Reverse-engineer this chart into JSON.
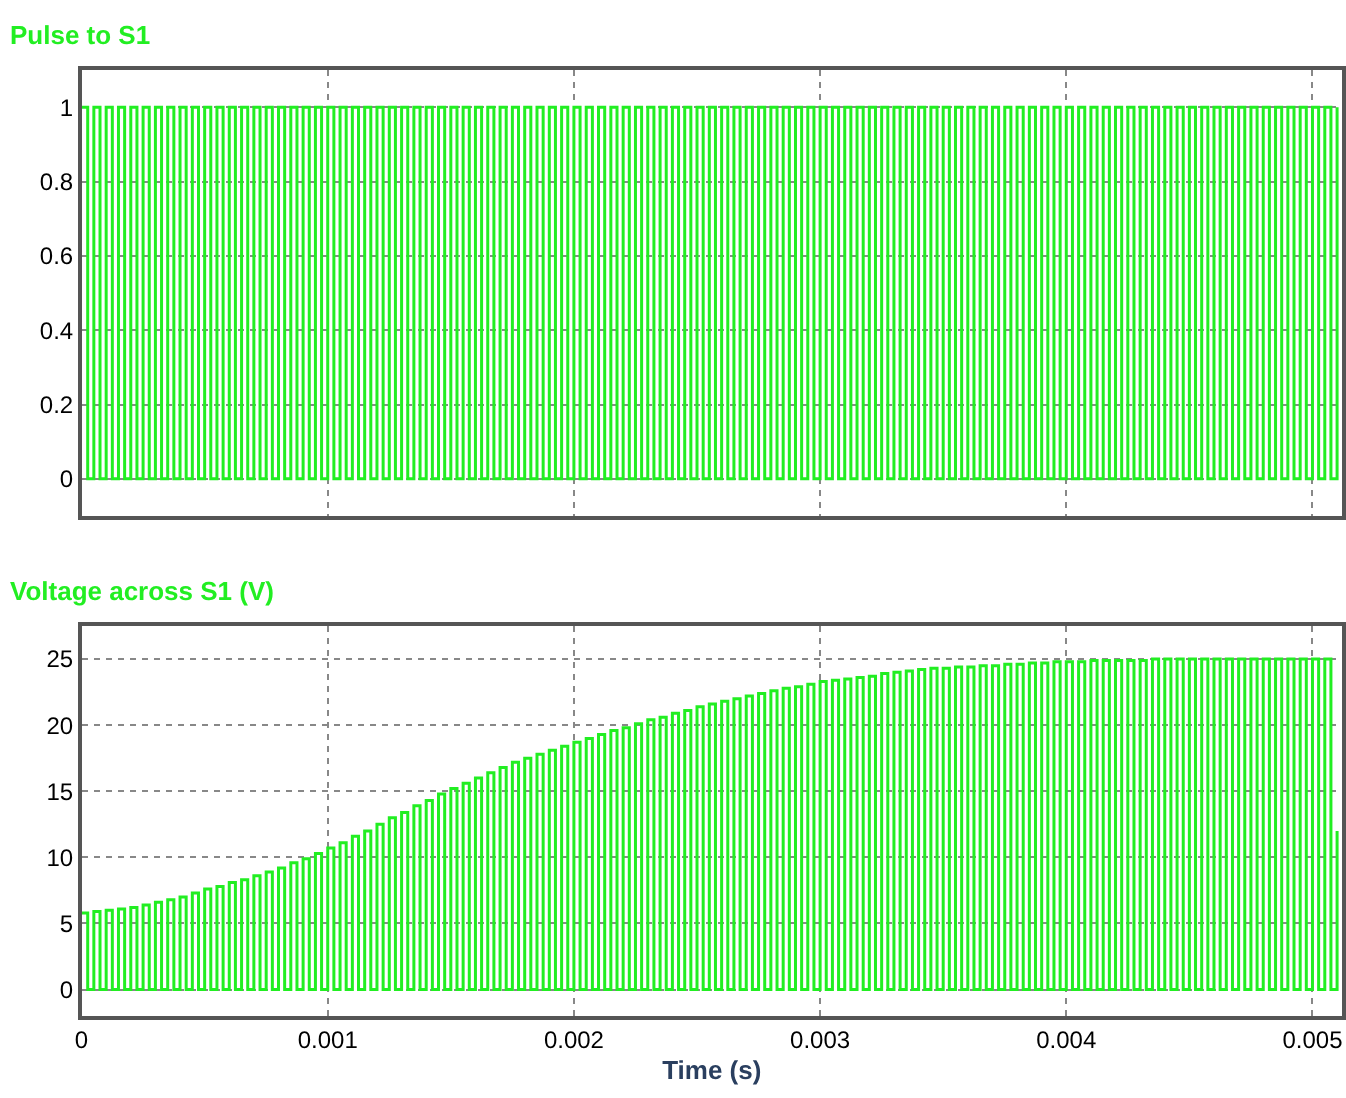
{
  "chart_data": [
    {
      "type": "step",
      "title": "Pulse to S1",
      "xlim": [
        0,
        0.00512
      ],
      "ylim": [
        -0.1,
        1.1
      ],
      "xticks": [
        0,
        0.001,
        0.002,
        0.003,
        0.004,
        0.005
      ],
      "yticks": [
        0,
        0.2,
        0.4,
        0.6,
        0.8,
        1
      ],
      "grid": true,
      "tick_labels": "y",
      "x": [
        0.0,
        2.5e-05,
        5e-05,
        7.5e-05,
        0.0001,
        0.000125,
        0.00015,
        0.000175,
        0.0002,
        0.000225,
        0.00025,
        0.000275,
        0.0003,
        0.000325,
        0.00035,
        0.000375,
        0.0004,
        0.000425,
        0.00045,
        0.000475,
        0.0005,
        0.000525,
        0.00055,
        0.000575,
        0.0006,
        0.000625,
        0.00065,
        0.000675,
        0.0007,
        0.000725,
        0.00075,
        0.000775,
        0.0008,
        0.000825,
        0.00085,
        0.000875,
        0.0009,
        0.000925,
        0.00095,
        0.000975,
        0.001,
        0.001025,
        0.00105,
        0.001075,
        0.0011,
        0.001125,
        0.00115,
        0.001175,
        0.0012,
        0.001225,
        0.00125,
        0.001275,
        0.0013,
        0.001325,
        0.00135,
        0.001375,
        0.0014,
        0.001425,
        0.00145,
        0.001475,
        0.0015,
        0.001525,
        0.00155,
        0.001575,
        0.0016,
        0.001625,
        0.00165,
        0.001675,
        0.0017,
        0.001725,
        0.00175,
        0.001775,
        0.0018,
        0.001825,
        0.00185,
        0.001875,
        0.0019,
        0.001925,
        0.00195,
        0.001975,
        0.002,
        0.002025,
        0.00205,
        0.002075,
        0.0021,
        0.002125,
        0.00215,
        0.002175,
        0.0022,
        0.002225,
        0.00225,
        0.002275,
        0.0023,
        0.002325,
        0.00235,
        0.002375,
        0.0024,
        0.002425,
        0.00245,
        0.002475,
        0.0025,
        0.002525,
        0.00255,
        0.002575,
        0.0026,
        0.002625,
        0.00265,
        0.002675,
        0.0027,
        0.002725,
        0.00275,
        0.002775,
        0.0028,
        0.002825,
        0.00285,
        0.002875,
        0.0029,
        0.002925,
        0.00295,
        0.002975,
        0.003,
        0.003025,
        0.00305,
        0.003075,
        0.0031,
        0.003125,
        0.00315,
        0.003175,
        0.0032,
        0.003225,
        0.00325,
        0.003275,
        0.0033,
        0.003325,
        0.00335,
        0.003375,
        0.0034,
        0.003425,
        0.00345,
        0.003475,
        0.0035,
        0.003525,
        0.00355,
        0.003575,
        0.0036,
        0.003625,
        0.00365,
        0.003675,
        0.0037,
        0.003725,
        0.00375,
        0.003775,
        0.0038,
        0.003825,
        0.00385,
        0.003875,
        0.0039,
        0.003925,
        0.00395,
        0.003975,
        0.004,
        0.004025,
        0.00405,
        0.004075,
        0.0041,
        0.004125,
        0.00415,
        0.004175,
        0.0042,
        0.004225,
        0.00425,
        0.004275,
        0.0043,
        0.004325,
        0.00435,
        0.004375,
        0.0044,
        0.004425,
        0.00445,
        0.004475,
        0.0045,
        0.004525,
        0.00455,
        0.004575,
        0.0046,
        0.004625,
        0.00465,
        0.004675,
        0.0047,
        0.004725,
        0.00475,
        0.004775,
        0.0048,
        0.004825,
        0.00485,
        0.004875,
        0.0049,
        0.004925,
        0.00495,
        0.004975,
        0.005,
        0.005025,
        0.00505,
        0.005075,
        0.0051
      ],
      "series": [
        {
          "color": "#22ee22",
          "values": [
            1,
            0,
            1,
            0,
            1,
            0,
            1,
            0,
            1,
            0,
            1,
            0,
            1,
            0,
            1,
            0,
            1,
            0,
            1,
            0,
            1,
            0,
            1,
            0,
            1,
            0,
            1,
            0,
            1,
            0,
            1,
            0,
            1,
            0,
            1,
            0,
            1,
            0,
            1,
            0,
            1,
            0,
            1,
            0,
            1,
            0,
            1,
            0,
            1,
            0,
            1,
            0,
            1,
            0,
            1,
            0,
            1,
            0,
            1,
            0,
            1,
            0,
            1,
            0,
            1,
            0,
            1,
            0,
            1,
            0,
            1,
            0,
            1,
            0,
            1,
            0,
            1,
            0,
            1,
            0,
            1,
            0,
            1,
            0,
            1,
            0,
            1,
            0,
            1,
            0,
            1,
            0,
            1,
            0,
            1,
            0,
            1,
            0,
            1,
            0,
            1,
            0,
            1,
            0,
            1,
            0,
            1,
            0,
            1,
            0,
            1,
            0,
            1,
            0,
            1,
            0,
            1,
            0,
            1,
            0,
            1,
            0,
            1,
            0,
            1,
            0,
            1,
            0,
            1,
            0,
            1,
            0,
            1,
            0,
            1,
            0,
            1,
            0,
            1,
            0,
            1,
            0,
            1,
            0,
            1,
            0,
            1,
            0,
            1,
            0,
            1,
            0,
            1,
            0,
            1,
            0,
            1,
            0,
            1,
            0,
            1,
            0,
            1,
            0,
            1,
            0,
            1,
            0,
            1,
            0,
            1,
            0,
            1,
            0,
            1,
            0,
            1,
            0,
            1,
            0,
            1,
            0,
            1,
            0,
            1,
            0,
            1,
            0,
            1,
            0,
            1,
            0,
            1,
            0,
            1,
            0,
            1,
            0,
            1,
            0,
            1,
            0,
            1,
            0,
            1
          ]
        }
      ]
    },
    {
      "type": "step",
      "title": "Voltage across S1 (V)",
      "xlabel": "Time (s)",
      "xlim": [
        0,
        0.00512
      ],
      "ylim": [
        -2,
        27.5
      ],
      "xticks": [
        0,
        0.001,
        0.002,
        0.003,
        0.004,
        0.005
      ],
      "yticks": [
        0,
        5,
        10,
        15,
        20,
        25
      ],
      "grid": true,
      "x": [
        0.0,
        2.5e-05,
        5e-05,
        7.5e-05,
        0.0001,
        0.000125,
        0.00015,
        0.000175,
        0.0002,
        0.000225,
        0.00025,
        0.000275,
        0.0003,
        0.000325,
        0.00035,
        0.000375,
        0.0004,
        0.000425,
        0.00045,
        0.000475,
        0.0005,
        0.000525,
        0.00055,
        0.000575,
        0.0006,
        0.000625,
        0.00065,
        0.000675,
        0.0007,
        0.000725,
        0.00075,
        0.000775,
        0.0008,
        0.000825,
        0.00085,
        0.000875,
        0.0009,
        0.000925,
        0.00095,
        0.000975,
        0.001,
        0.001025,
        0.00105,
        0.001075,
        0.0011,
        0.001125,
        0.00115,
        0.001175,
        0.0012,
        0.001225,
        0.00125,
        0.001275,
        0.0013,
        0.001325,
        0.00135,
        0.001375,
        0.0014,
        0.001425,
        0.00145,
        0.001475,
        0.0015,
        0.001525,
        0.00155,
        0.001575,
        0.0016,
        0.001625,
        0.00165,
        0.001675,
        0.0017,
        0.001725,
        0.00175,
        0.001775,
        0.0018,
        0.001825,
        0.00185,
        0.001875,
        0.0019,
        0.001925,
        0.00195,
        0.001975,
        0.002,
        0.002025,
        0.00205,
        0.002075,
        0.0021,
        0.002125,
        0.00215,
        0.002175,
        0.0022,
        0.002225,
        0.00225,
        0.002275,
        0.0023,
        0.002325,
        0.00235,
        0.002375,
        0.0024,
        0.002425,
        0.00245,
        0.002475,
        0.0025,
        0.002525,
        0.00255,
        0.002575,
        0.0026,
        0.002625,
        0.00265,
        0.002675,
        0.0027,
        0.002725,
        0.00275,
        0.002775,
        0.0028,
        0.002825,
        0.00285,
        0.002875,
        0.0029,
        0.002925,
        0.00295,
        0.002975,
        0.003,
        0.003025,
        0.00305,
        0.003075,
        0.0031,
        0.003125,
        0.00315,
        0.003175,
        0.0032,
        0.003225,
        0.00325,
        0.003275,
        0.0033,
        0.003325,
        0.00335,
        0.003375,
        0.0034,
        0.003425,
        0.00345,
        0.003475,
        0.0035,
        0.003525,
        0.00355,
        0.003575,
        0.0036,
        0.003625,
        0.00365,
        0.003675,
        0.0037,
        0.003725,
        0.00375,
        0.003775,
        0.0038,
        0.003825,
        0.00385,
        0.003875,
        0.0039,
        0.003925,
        0.00395,
        0.003975,
        0.004,
        0.004025,
        0.00405,
        0.004075,
        0.0041,
        0.004125,
        0.00415,
        0.004175,
        0.0042,
        0.004225,
        0.00425,
        0.004275,
        0.0043,
        0.004325,
        0.00435,
        0.004375,
        0.0044,
        0.004425,
        0.00445,
        0.004475,
        0.0045,
        0.004525,
        0.00455,
        0.004575,
        0.0046,
        0.004625,
        0.00465,
        0.004675,
        0.0047,
        0.004725,
        0.00475,
        0.004775,
        0.0048,
        0.004825,
        0.00485,
        0.004875,
        0.0049,
        0.004925,
        0.00495,
        0.004975,
        0.005,
        0.005025,
        0.00505,
        0.005075,
        0.0051
      ],
      "series": [
        {
          "color": "#22ee22",
          "values": [
            5.8,
            0,
            5.9,
            0,
            6.0,
            0,
            6.1,
            0,
            6.2,
            0,
            6.4,
            0,
            6.6,
            0,
            6.8,
            0,
            7.0,
            0,
            7.3,
            0,
            7.6,
            0,
            7.8,
            0,
            8.1,
            0,
            8.3,
            0,
            8.6,
            0,
            8.9,
            0,
            9.2,
            0,
            9.6,
            0,
            9.9,
            0,
            10.3,
            0,
            10.7,
            0,
            11.1,
            0,
            11.6,
            0,
            12.0,
            0,
            12.5,
            0,
            13.0,
            0,
            13.4,
            0,
            13.9,
            0,
            14.3,
            0,
            14.8,
            0,
            15.2,
            0,
            15.6,
            0,
            16.0,
            0,
            16.4,
            0,
            16.8,
            0,
            17.2,
            0,
            17.5,
            0,
            17.8,
            0,
            18.1,
            0,
            18.4,
            0,
            18.7,
            0,
            19.0,
            0,
            19.3,
            0,
            19.6,
            0,
            19.8,
            0,
            20.1,
            0,
            20.4,
            0,
            20.6,
            0,
            20.9,
            0,
            21.1,
            0,
            21.4,
            0,
            21.6,
            0,
            21.8,
            0,
            22.0,
            0,
            22.2,
            0,
            22.4,
            0,
            22.6,
            0,
            22.8,
            0,
            22.9,
            0,
            23.1,
            0,
            23.3,
            0,
            23.4,
            0,
            23.5,
            0,
            23.6,
            0,
            23.7,
            0,
            23.9,
            0,
            24.0,
            0,
            24.1,
            0,
            24.2,
            0,
            24.3,
            0,
            24.3,
            0,
            24.4,
            0,
            24.4,
            0,
            24.5,
            0,
            24.5,
            0,
            24.6,
            0,
            24.6,
            0,
            24.7,
            0,
            24.7,
            0,
            24.8,
            0,
            24.8,
            0,
            24.8,
            0,
            24.9,
            0,
            24.9,
            0,
            24.9,
            0,
            24.9,
            0,
            24.9,
            0,
            25,
            0,
            25,
            0,
            25,
            0,
            25,
            0,
            25,
            0,
            25,
            0,
            25,
            0,
            25,
            0,
            25,
            0,
            25,
            0,
            25,
            0,
            25,
            0,
            25,
            0,
            25,
            0,
            25,
            0,
            12
          ]
        }
      ]
    }
  ]
}
